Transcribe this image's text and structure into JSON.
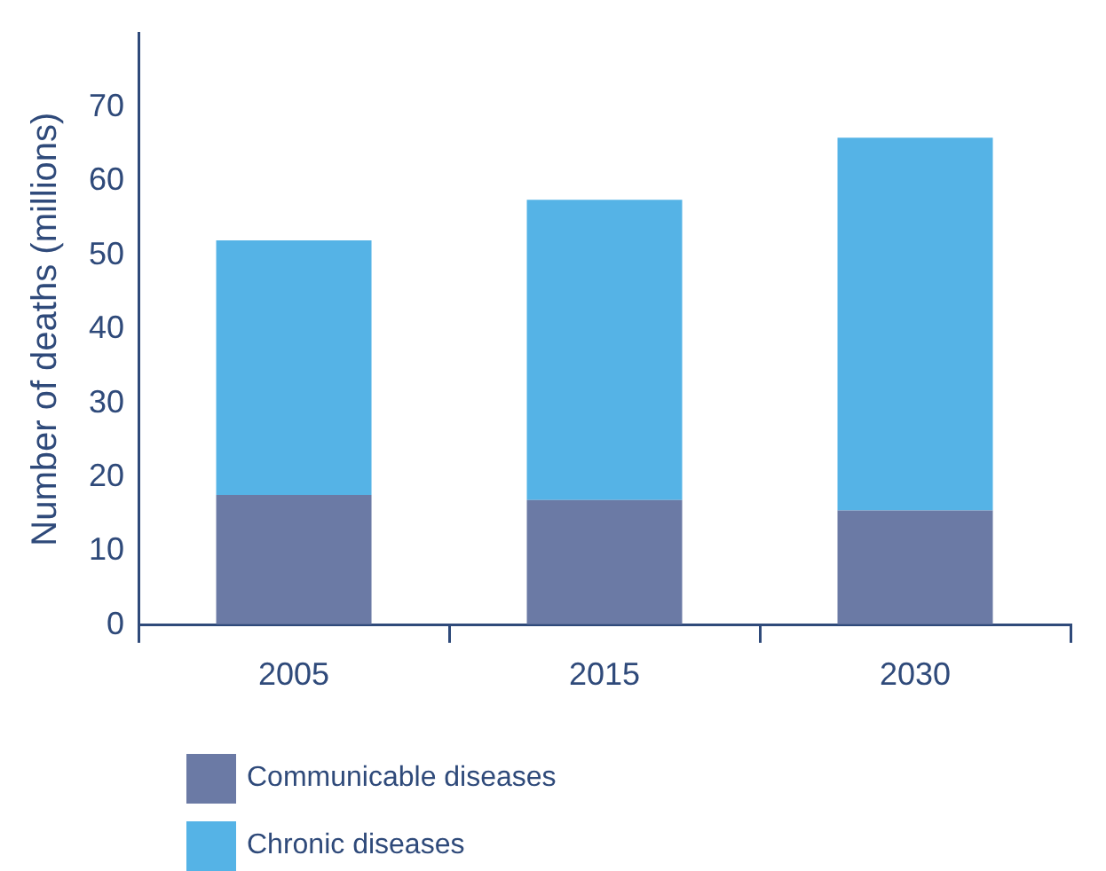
{
  "chart_data": {
    "type": "bar",
    "stacked": true,
    "ylabel": "Number of deaths (millions)",
    "categories": [
      "2005",
      "2015",
      "2030"
    ],
    "series": [
      {
        "name": "Communicable diseases",
        "color": "#6b7aa5",
        "values": [
          17.6,
          16.9,
          15.5
        ]
      },
      {
        "name": "Chronic diseases",
        "color": "#55b3e6",
        "values": [
          34.4,
          40.6,
          50.4
        ]
      }
    ],
    "ylim": [
      0,
      80
    ],
    "yticks": [
      0,
      10,
      20,
      30,
      40,
      50,
      60,
      70
    ],
    "grid": false,
    "legend": "bottom left"
  }
}
